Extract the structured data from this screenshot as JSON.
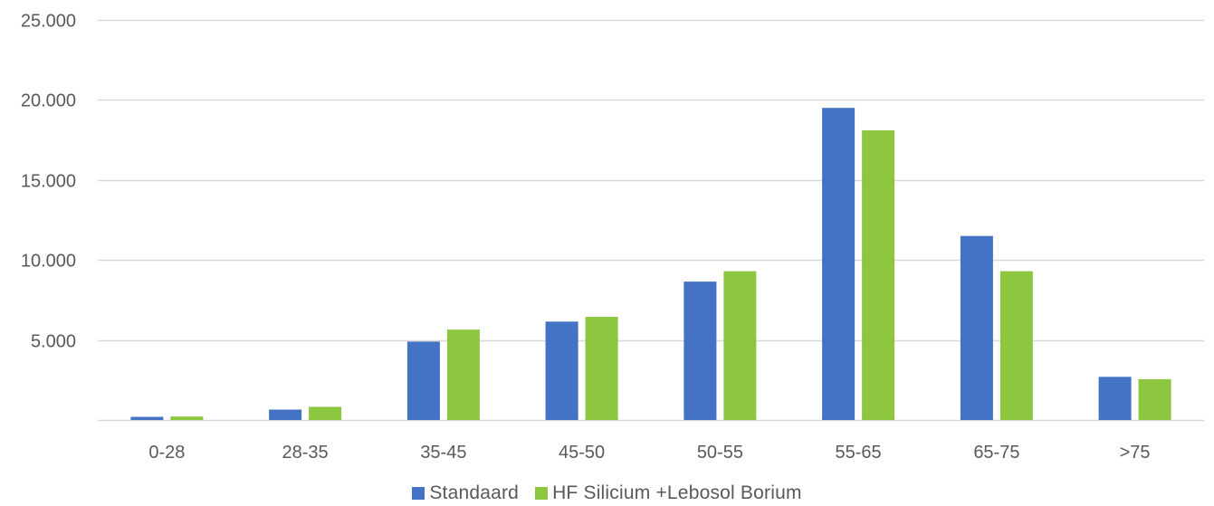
{
  "chart_data": {
    "type": "bar",
    "categories": [
      "0-28",
      "28-35",
      "35-45",
      "45-50",
      "50-55",
      "55-65",
      "65-75",
      ">75"
    ],
    "series": [
      {
        "name": "Standaard",
        "color": "#4472C4",
        "values": [
          200,
          650,
          4900,
          6150,
          8650,
          19500,
          11500,
          2700
        ]
      },
      {
        "name": "HF Silicium +Lebosol Borium",
        "color": "#8DC63F",
        "values": [
          220,
          820,
          5650,
          6450,
          9300,
          18100,
          9300,
          2550
        ]
      }
    ],
    "ylim": [
      0,
      25000
    ],
    "yticks": [
      5000,
      10000,
      15000,
      20000,
      25000
    ],
    "ytick_labels": [
      "5.000",
      "10.000",
      "15.000",
      "20.000",
      "25.000"
    ],
    "grid": true,
    "legend_position": "bottom",
    "title": "",
    "xlabel": "",
    "ylabel": ""
  }
}
